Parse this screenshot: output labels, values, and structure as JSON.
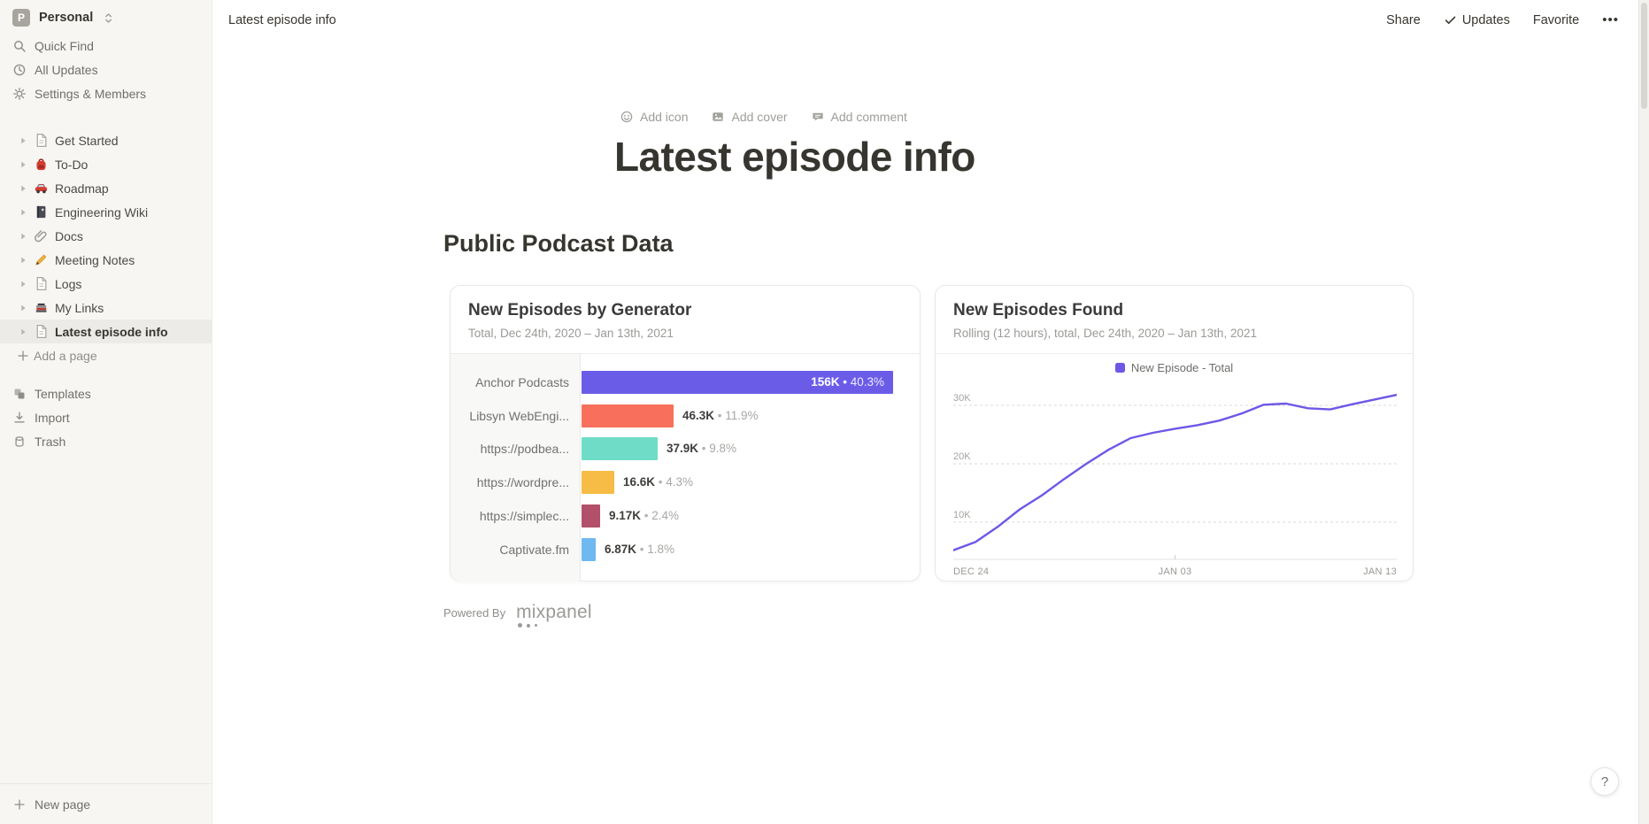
{
  "workspace": {
    "name": "Personal",
    "initial": "P"
  },
  "sidebar": {
    "top_items": [
      {
        "label": "Quick Find",
        "icon": "search"
      },
      {
        "label": "All Updates",
        "icon": "clock"
      },
      {
        "label": "Settings & Members",
        "icon": "gear"
      }
    ],
    "pages": [
      {
        "label": "Get Started",
        "icon": "page",
        "selected": false
      },
      {
        "label": "To-Do",
        "icon": "backpack",
        "selected": false
      },
      {
        "label": "Roadmap",
        "icon": "car",
        "selected": false
      },
      {
        "label": "Engineering Wiki",
        "icon": "notebook",
        "selected": false
      },
      {
        "label": "Docs",
        "icon": "paperclip",
        "selected": false
      },
      {
        "label": "Meeting Notes",
        "icon": "pencil",
        "selected": false
      },
      {
        "label": "Logs",
        "icon": "page",
        "selected": false
      },
      {
        "label": "My Links",
        "icon": "books",
        "selected": false
      },
      {
        "label": "Latest episode info",
        "icon": "page",
        "selected": true
      }
    ],
    "add_page_label": "Add a page",
    "tools": [
      {
        "label": "Templates",
        "icon": "templates"
      },
      {
        "label": "Import",
        "icon": "import"
      },
      {
        "label": "Trash",
        "icon": "trash"
      }
    ],
    "new_page_label": "New page"
  },
  "topbar": {
    "breadcrumb": "Latest episode info",
    "share_label": "Share",
    "updates_label": "Updates",
    "favorite_label": "Favorite",
    "more_label": "•••"
  },
  "page": {
    "controls": [
      {
        "label": "Add icon",
        "icon": "smiley"
      },
      {
        "label": "Add cover",
        "icon": "image"
      },
      {
        "label": "Add comment",
        "icon": "comment"
      }
    ],
    "title": "Latest episode info",
    "section_heading": "Public Podcast Data",
    "powered_by": "Powered By",
    "powered_logo": "mixpanel",
    "help_label": "?"
  },
  "icons": {
    "search": "magnifier",
    "clock": "clock-face",
    "gear": "settings-gear",
    "page": "document-page",
    "backpack": "red-backpack-emoji",
    "car": "red-car-emoji",
    "notebook": "notebook-emoji",
    "paperclip": "paperclip-emoji",
    "pencil": "pencil-emoji",
    "books": "books-emoji",
    "templates": "shapes",
    "import": "download-arrow",
    "trash": "trash-can",
    "plus": "plus-sign",
    "smiley": "smiley-face",
    "image": "picture-frame",
    "comment": "speech-bubble",
    "check": "checkmark",
    "chevron-updown": "sort-chevrons",
    "expand": "triangle-right"
  },
  "chart_data": [
    {
      "type": "bar",
      "title": "New Episodes by Generator",
      "subtitle": "Total, Dec 24th, 2020 – Jan 13th, 2021",
      "orientation": "horizontal",
      "separator": "•",
      "max_value": 156000,
      "rows": [
        {
          "category": "Anchor Podcasts",
          "value": 156000,
          "value_label": "156K",
          "pct_label": "40.3%",
          "color": "#6b5ce8",
          "label_inside": true
        },
        {
          "category": "Libsyn WebEngi...",
          "value": 46300,
          "value_label": "46.3K",
          "pct_label": "11.9%",
          "color": "#f8705b",
          "label_inside": false
        },
        {
          "category": "https://podbea...",
          "value": 37900,
          "value_label": "37.9K",
          "pct_label": "9.8%",
          "color": "#6fdcc7",
          "label_inside": false
        },
        {
          "category": "https://wordpre...",
          "value": 16600,
          "value_label": "16.6K",
          "pct_label": "4.3%",
          "color": "#f6bc45",
          "label_inside": false
        },
        {
          "category": "https://simplec...",
          "value": 9170,
          "value_label": "9.17K",
          "pct_label": "2.4%",
          "color": "#b25069",
          "label_inside": false
        },
        {
          "category": "Captivate.fm",
          "value": 6870,
          "value_label": "6.87K",
          "pct_label": "1.8%",
          "color": "#6fb9f0",
          "label_inside": false
        }
      ]
    },
    {
      "type": "line",
      "title": "New Episodes Found",
      "subtitle": "Rolling (12 hours), total, Dec 24th, 2020 – Jan 13th, 2021",
      "grid": "dashed-horizontal",
      "legend_position": "top-center",
      "y_ticks": [
        {
          "label": "30K",
          "value": 30000
        },
        {
          "label": "20K",
          "value": 20000
        },
        {
          "label": "10K",
          "value": 10000
        }
      ],
      "x_ticks": [
        {
          "label": "DEC 24",
          "pos": 0
        },
        {
          "label": "JAN 03",
          "pos": 0.5
        },
        {
          "label": "JAN 13",
          "pos": 1
        }
      ],
      "series": [
        {
          "name": "New Episode - Total",
          "color": "#6d58e6",
          "x_days_from_dec24": [
            0,
            1,
            2,
            3,
            4,
            5,
            6,
            7,
            8,
            9,
            10,
            11,
            12,
            13,
            14,
            15,
            16,
            17,
            18,
            19,
            20
          ],
          "values": [
            5200,
            6600,
            9200,
            12200,
            14600,
            17400,
            20000,
            22400,
            24400,
            25300,
            26000,
            26600,
            27400,
            28600,
            30100,
            30300,
            29500,
            29300,
            30200,
            31000,
            31800
          ]
        }
      ]
    }
  ]
}
